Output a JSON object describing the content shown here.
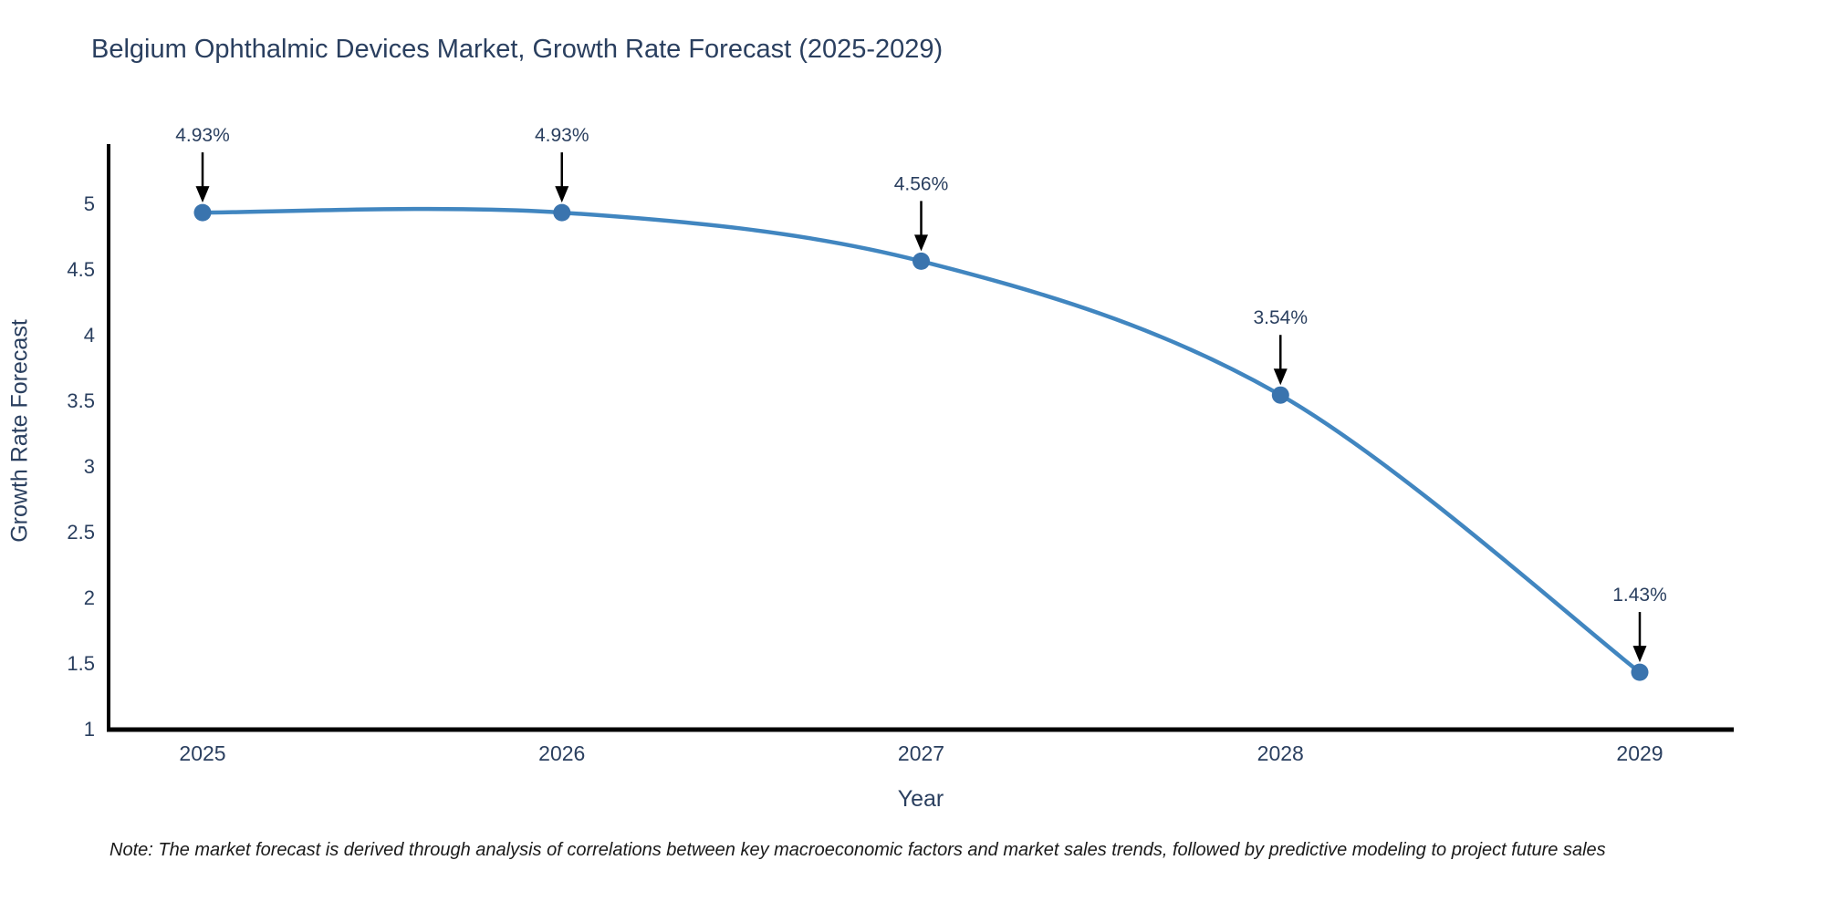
{
  "note": "Note: The market forecast is derived through analysis of correlations between key macroeconomic factors and market sales trends, followed by predictive modeling to project future sales",
  "chart_data": {
    "type": "line",
    "line_shape": "spline",
    "title": "Belgium Ophthalmic Devices Market, Growth Rate Forecast (2025-2029)",
    "xlabel": "Year",
    "ylabel": "Growth Rate Forecast",
    "x": [
      2025,
      2026,
      2027,
      2028,
      2029
    ],
    "values": [
      4.93,
      4.93,
      4.56,
      3.54,
      1.43
    ],
    "point_labels": [
      "4.93%",
      "4.93%",
      "4.56%",
      "3.54%",
      "1.43%"
    ],
    "yticks": [
      1,
      1.5,
      2,
      2.5,
      3,
      3.5,
      4,
      4.5,
      5
    ],
    "ytick_labels": [
      "1",
      "1.5",
      "2",
      "2.5",
      "3",
      "3.5",
      "4",
      "4.5",
      "5"
    ],
    "ylim": [
      1,
      5
    ],
    "grid": false,
    "legend": "none",
    "colors": {
      "line": "#4186c0",
      "marker": "#3a74ae",
      "axis": "#000000",
      "text": "#2a3f5f",
      "annotation_arrow": "#000000",
      "background": "#ffffff"
    }
  }
}
